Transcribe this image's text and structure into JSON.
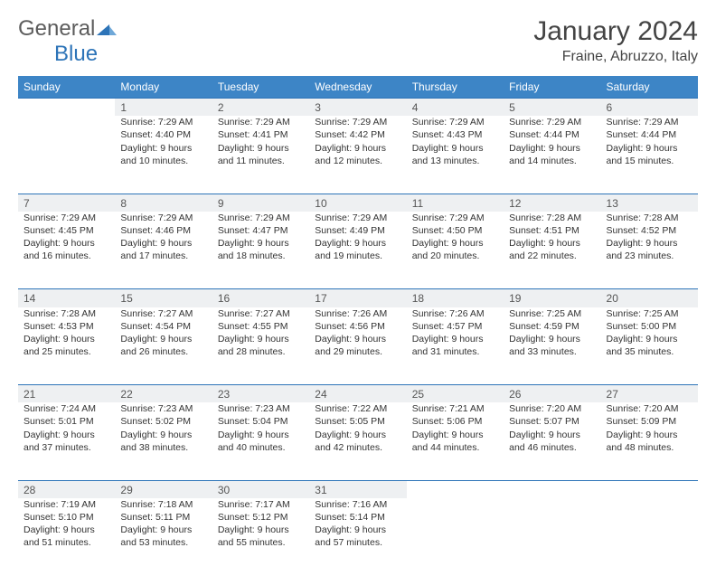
{
  "logo": {
    "text_general": "General",
    "text_blue": "Blue"
  },
  "header": {
    "month_title": "January 2024",
    "location": "Fraine, Abruzzo, Italy"
  },
  "colors": {
    "header_bg": "#3d85c6",
    "border": "#2d74b8",
    "daynum_bg": "#eef0f2",
    "text": "#333333",
    "logo_gray": "#5c5c5c",
    "logo_blue": "#2d74b8"
  },
  "days_of_week": [
    "Sunday",
    "Monday",
    "Tuesday",
    "Wednesday",
    "Thursday",
    "Friday",
    "Saturday"
  ],
  "weeks": [
    {
      "nums": [
        "",
        "1",
        "2",
        "3",
        "4",
        "5",
        "6"
      ],
      "cells": [
        "",
        "Sunrise: 7:29 AM\nSunset: 4:40 PM\nDaylight: 9 hours and 10 minutes.",
        "Sunrise: 7:29 AM\nSunset: 4:41 PM\nDaylight: 9 hours and 11 minutes.",
        "Sunrise: 7:29 AM\nSunset: 4:42 PM\nDaylight: 9 hours and 12 minutes.",
        "Sunrise: 7:29 AM\nSunset: 4:43 PM\nDaylight: 9 hours and 13 minutes.",
        "Sunrise: 7:29 AM\nSunset: 4:44 PM\nDaylight: 9 hours and 14 minutes.",
        "Sunrise: 7:29 AM\nSunset: 4:44 PM\nDaylight: 9 hours and 15 minutes."
      ]
    },
    {
      "nums": [
        "7",
        "8",
        "9",
        "10",
        "11",
        "12",
        "13"
      ],
      "cells": [
        "Sunrise: 7:29 AM\nSunset: 4:45 PM\nDaylight: 9 hours and 16 minutes.",
        "Sunrise: 7:29 AM\nSunset: 4:46 PM\nDaylight: 9 hours and 17 minutes.",
        "Sunrise: 7:29 AM\nSunset: 4:47 PM\nDaylight: 9 hours and 18 minutes.",
        "Sunrise: 7:29 AM\nSunset: 4:49 PM\nDaylight: 9 hours and 19 minutes.",
        "Sunrise: 7:29 AM\nSunset: 4:50 PM\nDaylight: 9 hours and 20 minutes.",
        "Sunrise: 7:28 AM\nSunset: 4:51 PM\nDaylight: 9 hours and 22 minutes.",
        "Sunrise: 7:28 AM\nSunset: 4:52 PM\nDaylight: 9 hours and 23 minutes."
      ]
    },
    {
      "nums": [
        "14",
        "15",
        "16",
        "17",
        "18",
        "19",
        "20"
      ],
      "cells": [
        "Sunrise: 7:28 AM\nSunset: 4:53 PM\nDaylight: 9 hours and 25 minutes.",
        "Sunrise: 7:27 AM\nSunset: 4:54 PM\nDaylight: 9 hours and 26 minutes.",
        "Sunrise: 7:27 AM\nSunset: 4:55 PM\nDaylight: 9 hours and 28 minutes.",
        "Sunrise: 7:26 AM\nSunset: 4:56 PM\nDaylight: 9 hours and 29 minutes.",
        "Sunrise: 7:26 AM\nSunset: 4:57 PM\nDaylight: 9 hours and 31 minutes.",
        "Sunrise: 7:25 AM\nSunset: 4:59 PM\nDaylight: 9 hours and 33 minutes.",
        "Sunrise: 7:25 AM\nSunset: 5:00 PM\nDaylight: 9 hours and 35 minutes."
      ]
    },
    {
      "nums": [
        "21",
        "22",
        "23",
        "24",
        "25",
        "26",
        "27"
      ],
      "cells": [
        "Sunrise: 7:24 AM\nSunset: 5:01 PM\nDaylight: 9 hours and 37 minutes.",
        "Sunrise: 7:23 AM\nSunset: 5:02 PM\nDaylight: 9 hours and 38 minutes.",
        "Sunrise: 7:23 AM\nSunset: 5:04 PM\nDaylight: 9 hours and 40 minutes.",
        "Sunrise: 7:22 AM\nSunset: 5:05 PM\nDaylight: 9 hours and 42 minutes.",
        "Sunrise: 7:21 AM\nSunset: 5:06 PM\nDaylight: 9 hours and 44 minutes.",
        "Sunrise: 7:20 AM\nSunset: 5:07 PM\nDaylight: 9 hours and 46 minutes.",
        "Sunrise: 7:20 AM\nSunset: 5:09 PM\nDaylight: 9 hours and 48 minutes."
      ]
    },
    {
      "nums": [
        "28",
        "29",
        "30",
        "31",
        "",
        "",
        ""
      ],
      "cells": [
        "Sunrise: 7:19 AM\nSunset: 5:10 PM\nDaylight: 9 hours and 51 minutes.",
        "Sunrise: 7:18 AM\nSunset: 5:11 PM\nDaylight: 9 hours and 53 minutes.",
        "Sunrise: 7:17 AM\nSunset: 5:12 PM\nDaylight: 9 hours and 55 minutes.",
        "Sunrise: 7:16 AM\nSunset: 5:14 PM\nDaylight: 9 hours and 57 minutes.",
        "",
        "",
        ""
      ]
    }
  ]
}
